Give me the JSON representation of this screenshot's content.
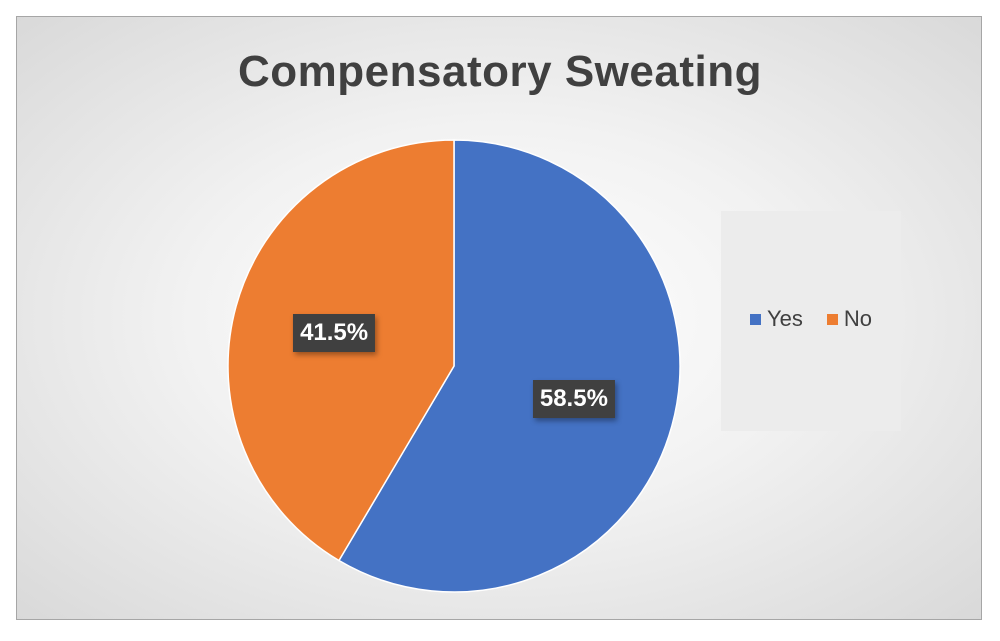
{
  "chart_data": {
    "type": "pie",
    "title": "Compensatory Sweating",
    "slices": [
      {
        "name": "Yes",
        "value": 58.5,
        "label": "58.5%",
        "color": "#4472C4"
      },
      {
        "name": "No",
        "value": 41.5,
        "label": "41.5%",
        "color": "#ED7D31"
      }
    ],
    "legend_position": "right",
    "start_angle": "12 o'clock, clockwise"
  }
}
